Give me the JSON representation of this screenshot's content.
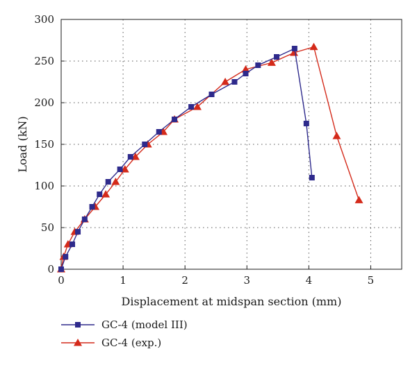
{
  "chart_data": {
    "type": "line",
    "xlabel": "Displacement at midspan section (mm)",
    "ylabel": "Load (kN)",
    "xlim": [
      0,
      5.5
    ],
    "ylim": [
      0,
      300
    ],
    "x_ticks": [
      "0",
      "1",
      "2",
      "3",
      "4",
      "5"
    ],
    "y_ticks": [
      "0",
      "50",
      "100",
      "150",
      "200",
      "250",
      "300"
    ],
    "grid": "dotted",
    "legend_position": "below",
    "series": [
      {
        "name": "GC-4 (model III)",
        "color": "#2e2a8c",
        "marker": "square",
        "x": [
          0.0,
          0.07,
          0.18,
          0.27,
          0.38,
          0.5,
          0.62,
          0.76,
          0.95,
          1.12,
          1.35,
          1.58,
          1.83,
          2.1,
          2.43,
          2.8,
          2.98,
          3.18,
          3.48,
          3.77,
          3.96,
          4.05
        ],
        "y": [
          0,
          15,
          30,
          45,
          60,
          75,
          90,
          105,
          120,
          135,
          150,
          165,
          180,
          195,
          210,
          225,
          235,
          245,
          255,
          265,
          175,
          110
        ]
      },
      {
        "name": "GC-4 (exp.)",
        "color": "#d42a1a",
        "marker": "triangle",
        "x": [
          0.0,
          0.04,
          0.11,
          0.22,
          0.38,
          0.55,
          0.72,
          0.88,
          1.03,
          1.2,
          1.4,
          1.65,
          1.83,
          2.2,
          2.65,
          2.98,
          3.4,
          3.76,
          4.08,
          4.45,
          4.81
        ],
        "y": [
          0,
          15,
          30,
          45,
          60,
          75,
          90,
          105,
          120,
          135,
          150,
          165,
          180,
          195,
          225,
          240,
          248,
          260,
          267,
          160,
          83
        ]
      }
    ]
  }
}
